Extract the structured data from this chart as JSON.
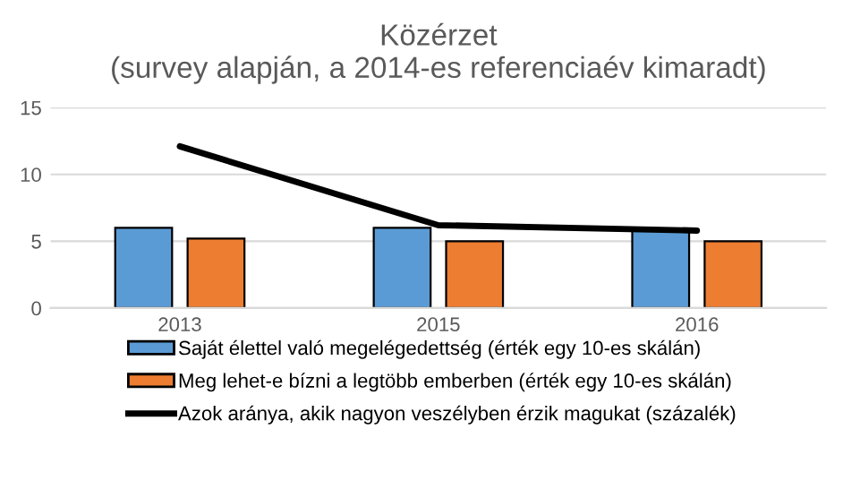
{
  "chart_data": {
    "type": "bar",
    "title": "Közérzet\n(survey alapján, a 2014-es referenciaév kimaradt)",
    "categories": [
      "2013",
      "2015",
      "2016"
    ],
    "series": [
      {
        "name": "Saját élettel való megelégedettség (érték egy 10-es skálán)",
        "color": "#5b9bd5",
        "values": [
          6.0,
          6.0,
          5.8
        ]
      },
      {
        "name": "Meg lehet-e bízni a legtöbb emberben (érték egy 10-es skálán)",
        "color": "#ed7d31",
        "values": [
          5.2,
          5.0,
          5.0
        ]
      },
      {
        "name": "Azok aránya, akik nagyon veszélyben érzik magukat (százalék)",
        "type": "line",
        "color": "#000000",
        "values": [
          12.1,
          6.2,
          5.8
        ]
      }
    ],
    "ylim": [
      0,
      15
    ],
    "yticks": [
      0,
      5,
      10,
      15
    ],
    "grid": "y",
    "legend": "bottom"
  }
}
